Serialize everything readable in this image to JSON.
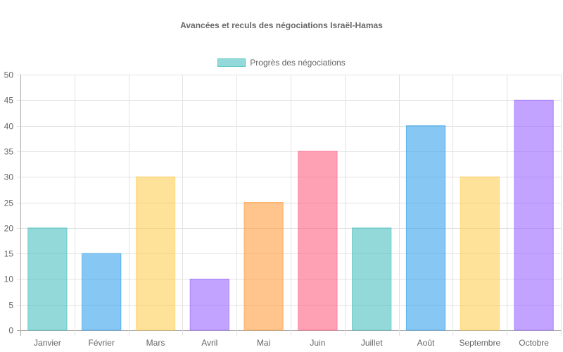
{
  "chart_data": {
    "type": "bar",
    "title": "Avancées et reculs des négociations Israël-Hamas",
    "xlabel": "",
    "ylabel": "",
    "ylim": [
      0,
      50
    ],
    "yticks": [
      0,
      5,
      10,
      15,
      20,
      25,
      30,
      35,
      40,
      45,
      50
    ],
    "grid": true,
    "legend_position": "top",
    "categories": [
      "Janvier",
      "Février",
      "Mars",
      "Avril",
      "Mai",
      "Juin",
      "Juillet",
      "Août",
      "Septembre",
      "Octobre"
    ],
    "series": [
      {
        "name": "Progrès des négociations",
        "values": [
          20,
          15,
          30,
          10,
          25,
          35,
          20,
          40,
          30,
          45
        ],
        "colors": [
          "#4bc0c0",
          "#36a2eb",
          "#ffce56",
          "#9966ff",
          "#ff9f40",
          "#ff6384",
          "#4bc0c0",
          "#36a2eb",
          "#ffce56",
          "#9966ff"
        ]
      }
    ]
  },
  "legend": {
    "label": "Progrès des négociations",
    "color": "#4bc0c0"
  }
}
